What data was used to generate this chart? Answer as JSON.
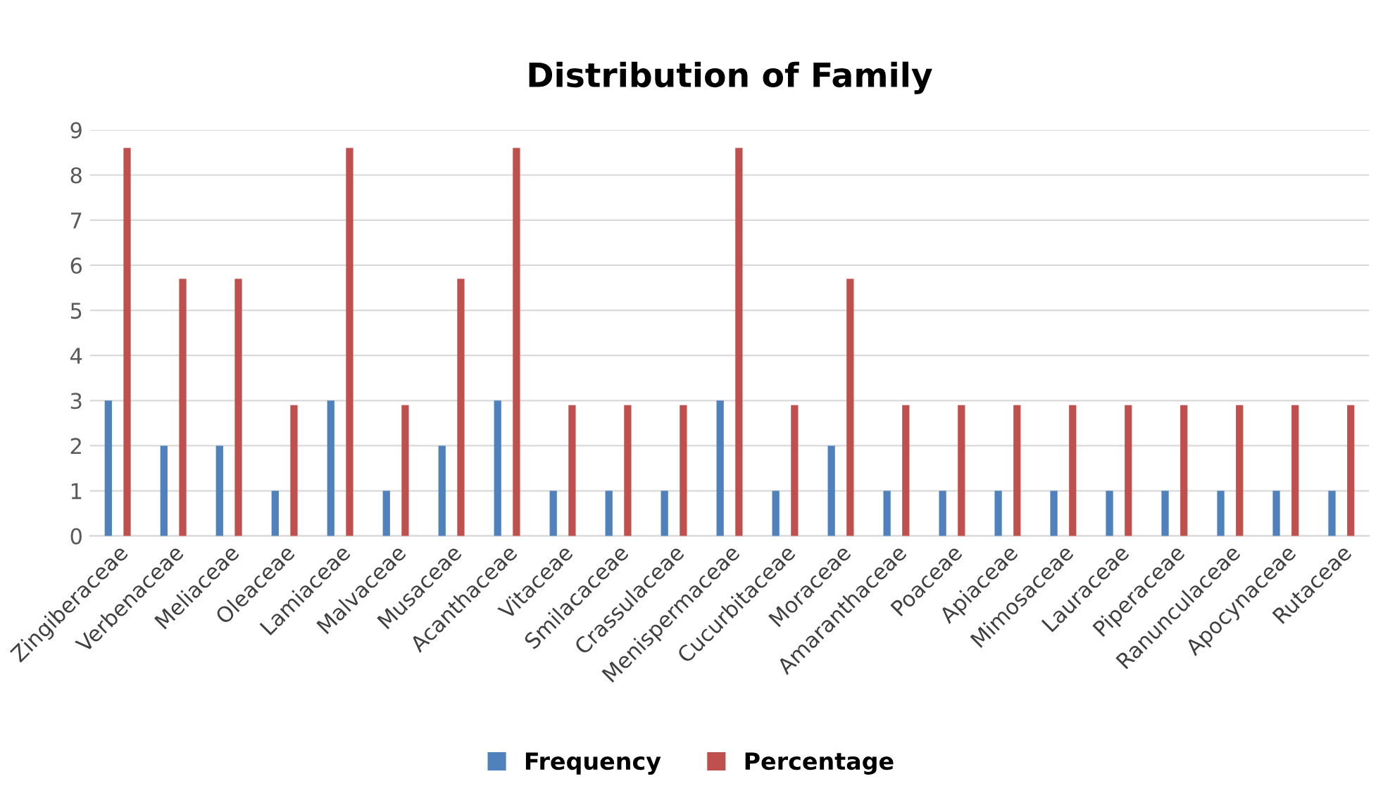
{
  "chart_data": {
    "type": "bar",
    "title": "Distribution of Family",
    "categories": [
      "Zingiberaceae",
      "Verbenaceae",
      "Meliaceae",
      "Oleaceae",
      "Lamiaceae",
      "Malvaceae",
      "Musaceae",
      "Acanthaceae",
      "Vitaceae",
      "Smilacaceae",
      "Crassulaceae",
      "Menispermaceae",
      "Cucurbitaceae",
      "Moraceae",
      "Amaranthaceae",
      "Poaceae",
      "Apiaceae",
      "Mimosaceae",
      "Lauraceae",
      "Piperaceae",
      "Ranunculaceae",
      "Apocynaceae",
      "Rutaceae"
    ],
    "series": [
      {
        "name": "Frequency",
        "color": "#4f81bd",
        "values": [
          3,
          2,
          2,
          1,
          3,
          1,
          2,
          3,
          1,
          1,
          1,
          3,
          1,
          2,
          1,
          1,
          1,
          1,
          1,
          1,
          1,
          1,
          1
        ]
      },
      {
        "name": "Percentage",
        "color": "#c0504d",
        "values": [
          8.6,
          5.7,
          5.7,
          2.9,
          8.6,
          2.9,
          5.7,
          8.6,
          2.9,
          2.9,
          2.9,
          8.6,
          2.9,
          5.7,
          2.9,
          2.9,
          2.9,
          2.9,
          2.9,
          2.9,
          2.9,
          2.9,
          2.9
        ]
      }
    ],
    "ylim": [
      0,
      9
    ],
    "yticks": [
      0,
      1,
      2,
      3,
      4,
      5,
      6,
      7,
      8,
      9
    ],
    "grid": "y",
    "legend": "bottom"
  }
}
